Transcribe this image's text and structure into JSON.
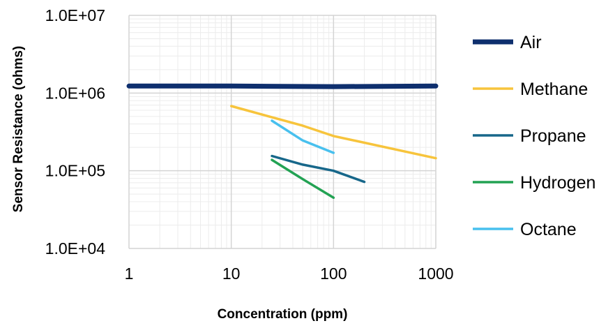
{
  "chart_data": {
    "type": "line",
    "title": "",
    "xlabel": "Concentration (ppm)",
    "ylabel": "Sensor Resistance (ohms)",
    "x_scale": "log",
    "y_scale": "log",
    "xlim": [
      1,
      1000
    ],
    "ylim": [
      10000,
      10000000
    ],
    "x_ticks": [
      1,
      10,
      100,
      1000
    ],
    "x_tick_labels": [
      "1",
      "10",
      "100",
      "1000"
    ],
    "y_ticks": [
      10000,
      100000,
      1000000,
      10000000
    ],
    "y_tick_labels": [
      "1.0E+04",
      "1.0E+05",
      "1.0E+06",
      "1.0E+07"
    ],
    "grid": true,
    "minor_grid": true,
    "legend_position": "right",
    "series": [
      {
        "name": "Air",
        "color": "#0e2f6e",
        "width": 7,
        "x": [
          1,
          10,
          100,
          1000
        ],
        "y": [
          1230000,
          1230000,
          1210000,
          1230000
        ]
      },
      {
        "name": "Methane",
        "color": "#f7c43c",
        "width": 3.5,
        "x": [
          10,
          50,
          100,
          1000
        ],
        "y": [
          680000,
          380000,
          280000,
          145000
        ]
      },
      {
        "name": "Propane",
        "color": "#17678a",
        "width": 3.5,
        "x": [
          25,
          50,
          100,
          200
        ],
        "y": [
          155000,
          120000,
          100000,
          72000
        ]
      },
      {
        "name": "Hydrogen",
        "color": "#22a253",
        "width": 3.5,
        "x": [
          25,
          50,
          100
        ],
        "y": [
          138000,
          78000,
          45000
        ]
      },
      {
        "name": "Octane",
        "color": "#48c0ee",
        "width": 3.5,
        "x": [
          25,
          50,
          100
        ],
        "y": [
          440000,
          245000,
          170000
        ]
      }
    ]
  }
}
